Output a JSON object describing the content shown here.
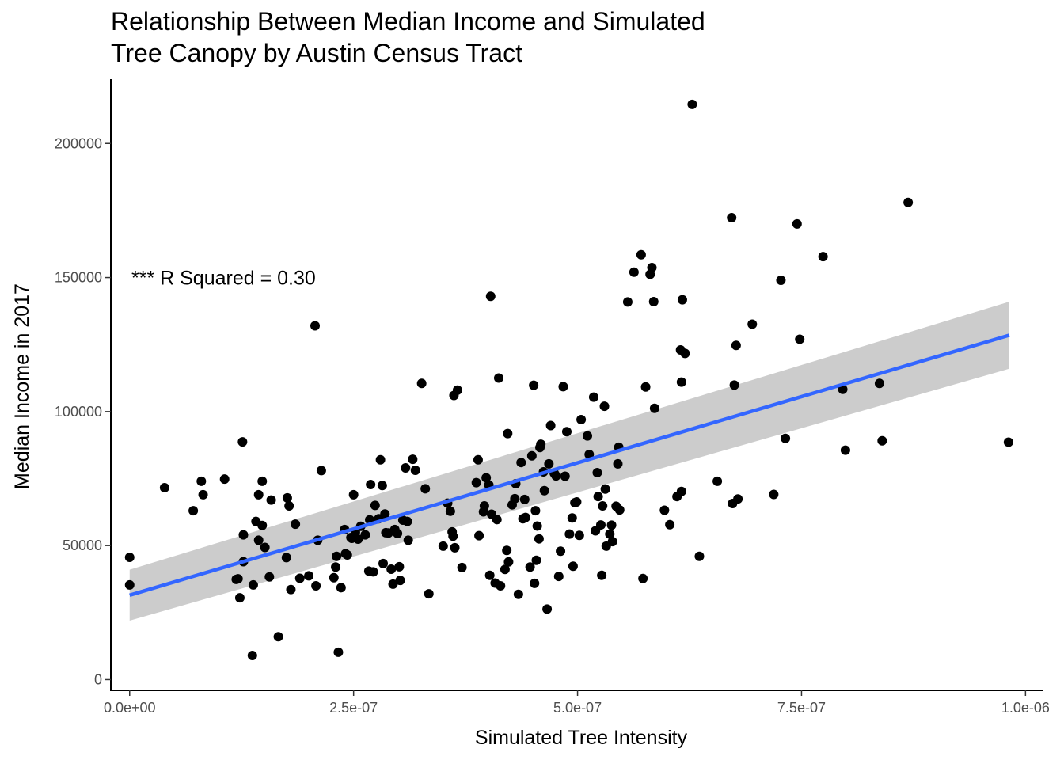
{
  "chart_data": {
    "type": "scatter",
    "title_lines": [
      "Relationship Between Median Income and Simulated",
      "Tree Canopy by Austin Census Tract"
    ],
    "xlabel": "Simulated Tree Intensity",
    "ylabel": "Median Income in 2017",
    "xlim": [
      -2.1e-08,
      1.02e-06
    ],
    "ylim": [
      -4000,
      224000
    ],
    "x_ticks": [
      {
        "value": 0,
        "label": "0.0e+00"
      },
      {
        "value": 2.5e-07,
        "label": "2.5e-07"
      },
      {
        "value": 5e-07,
        "label": "5.0e-07"
      },
      {
        "value": 7.5e-07,
        "label": "7.5e-07"
      },
      {
        "value": 1e-06,
        "label": "1.0e-06"
      }
    ],
    "y_ticks": [
      {
        "value": 0,
        "label": "0"
      },
      {
        "value": 50000,
        "label": "50000"
      },
      {
        "value": 100000,
        "label": "100000"
      },
      {
        "value": 150000,
        "label": "150000"
      },
      {
        "value": 200000,
        "label": "200000"
      }
    ],
    "annotation": {
      "text": "*** R Squared = 0.30",
      "x": -2.5e-08,
      "y": 150000
    },
    "grid": false,
    "legend": "none",
    "colors": {
      "points": "#000000",
      "fit_line": "#3366ff",
      "ribbon": "#cccccc",
      "axis": "#000000"
    },
    "fit_line": {
      "x": [
        0,
        9.82e-07
      ],
      "y": [
        31500,
        128500
      ],
      "ci_lower": [
        22000,
        116000
      ],
      "ci_upper": [
        41000,
        141000
      ]
    },
    "points": [
      [
        0.0,
        45600
      ],
      [
        0.0,
        35300
      ],
      [
        3.9e-08,
        71600
      ],
      [
        7.1e-08,
        63000
      ],
      [
        8e-08,
        74000
      ],
      [
        8.2e-08,
        69000
      ],
      [
        1.06e-07,
        74800
      ],
      [
        1.19e-07,
        37400
      ],
      [
        1.21e-07,
        37600
      ],
      [
        1.23e-07,
        30500
      ],
      [
        1.27e-07,
        54000
      ],
      [
        1.27e-07,
        44000
      ],
      [
        1.26e-07,
        88700
      ],
      [
        1.37e-07,
        9000
      ],
      [
        1.38e-07,
        35300
      ],
      [
        1.41e-07,
        59000
      ],
      [
        1.44e-07,
        52000
      ],
      [
        1.44e-07,
        69000
      ],
      [
        1.48e-07,
        57500
      ],
      [
        1.48e-07,
        74000
      ],
      [
        1.51e-07,
        49300
      ],
      [
        1.56e-07,
        38300
      ],
      [
        1.58e-07,
        67000
      ],
      [
        1.66e-07,
        16000
      ],
      [
        1.75e-07,
        45500
      ],
      [
        1.76e-07,
        67800
      ],
      [
        1.78e-07,
        64800
      ],
      [
        1.8e-07,
        33600
      ],
      [
        1.85e-07,
        58000
      ],
      [
        1.9e-07,
        37800
      ],
      [
        2e-07,
        38700
      ],
      [
        2.07e-07,
        132000
      ],
      [
        2.08e-07,
        35000
      ],
      [
        2.1e-07,
        52000
      ],
      [
        2.14e-07,
        78000
      ],
      [
        2.28e-07,
        38000
      ],
      [
        2.3e-07,
        42000
      ],
      [
        2.31e-07,
        46000
      ],
      [
        2.33e-07,
        10200
      ],
      [
        2.36e-07,
        34300
      ],
      [
        2.4e-07,
        56000
      ],
      [
        2.41e-07,
        47000
      ],
      [
        2.43e-07,
        46500
      ],
      [
        2.47e-07,
        53000
      ],
      [
        2.48e-07,
        52700
      ],
      [
        2.5e-07,
        69000
      ],
      [
        2.52e-07,
        55000
      ],
      [
        2.55e-07,
        52400
      ],
      [
        2.58e-07,
        57200
      ],
      [
        2.63e-07,
        54000
      ],
      [
        2.67e-07,
        40500
      ],
      [
        2.68e-07,
        59600
      ],
      [
        2.69e-07,
        72800
      ],
      [
        2.72e-07,
        40200
      ],
      [
        2.74e-07,
        65000
      ],
      [
        2.78e-07,
        60000
      ],
      [
        2.8e-07,
        82000
      ],
      [
        2.82e-07,
        72400
      ],
      [
        2.83e-07,
        43300
      ],
      [
        2.85e-07,
        61800
      ],
      [
        2.86e-07,
        54800
      ],
      [
        2.89e-07,
        54700
      ],
      [
        2.92e-07,
        41200
      ],
      [
        2.94e-07,
        35600
      ],
      [
        2.96e-07,
        56000
      ],
      [
        2.99e-07,
        54500
      ],
      [
        3.01e-07,
        42100
      ],
      [
        3.02e-07,
        37000
      ],
      [
        3.05e-07,
        59500
      ],
      [
        3.08e-07,
        79000
      ],
      [
        3.1e-07,
        59000
      ],
      [
        3.11e-07,
        52000
      ],
      [
        3.16e-07,
        82200
      ],
      [
        3.19e-07,
        78100
      ],
      [
        3.26e-07,
        110500
      ],
      [
        3.3e-07,
        71200
      ],
      [
        3.34e-07,
        32000
      ],
      [
        3.5e-07,
        49800
      ],
      [
        3.55e-07,
        65800
      ],
      [
        3.58e-07,
        62800
      ],
      [
        3.6e-07,
        55100
      ],
      [
        3.61e-07,
        53500
      ],
      [
        3.62e-07,
        106000
      ],
      [
        3.63e-07,
        49200
      ],
      [
        3.66e-07,
        108000
      ],
      [
        3.71e-07,
        41800
      ],
      [
        3.87e-07,
        73500
      ],
      [
        3.89e-07,
        82000
      ],
      [
        3.9e-07,
        53700
      ],
      [
        3.95e-07,
        62600
      ],
      [
        3.96e-07,
        64800
      ],
      [
        3.98e-07,
        75300
      ],
      [
        4.01e-07,
        72600
      ],
      [
        4.02e-07,
        38900
      ],
      [
        4.03e-07,
        143000
      ],
      [
        4.04e-07,
        61700
      ],
      [
        4.08e-07,
        36000
      ],
      [
        4.1e-07,
        59700
      ],
      [
        4.12e-07,
        112500
      ],
      [
        4.14e-07,
        35000
      ],
      [
        4.19e-07,
        41100
      ],
      [
        4.21e-07,
        48200
      ],
      [
        4.22e-07,
        91800
      ],
      [
        4.23e-07,
        43900
      ],
      [
        4.27e-07,
        65200
      ],
      [
        4.3e-07,
        67500
      ],
      [
        4.31e-07,
        73100
      ],
      [
        4.34e-07,
        31800
      ],
      [
        4.37e-07,
        81000
      ],
      [
        4.39e-07,
        60000
      ],
      [
        4.41e-07,
        67200
      ],
      [
        4.42e-07,
        60500
      ],
      [
        4.47e-07,
        42000
      ],
      [
        4.49e-07,
        83500
      ],
      [
        4.51e-07,
        109800
      ],
      [
        4.52e-07,
        35900
      ],
      [
        4.53e-07,
        63000
      ],
      [
        4.54e-07,
        44500
      ],
      [
        4.55e-07,
        57300
      ],
      [
        4.57e-07,
        52500
      ],
      [
        4.58e-07,
        86600
      ],
      [
        4.59e-07,
        87800
      ],
      [
        4.62e-07,
        77500
      ],
      [
        4.63e-07,
        70500
      ],
      [
        4.66e-07,
        26300
      ],
      [
        4.68e-07,
        80500
      ],
      [
        4.7e-07,
        94800
      ],
      [
        4.74e-07,
        77000
      ],
      [
        4.76e-07,
        76000
      ],
      [
        4.79e-07,
        38500
      ],
      [
        4.81e-07,
        47900
      ],
      [
        4.84e-07,
        109300
      ],
      [
        4.86e-07,
        75900
      ],
      [
        4.88e-07,
        92500
      ],
      [
        4.91e-07,
        54300
      ],
      [
        4.94e-07,
        60300
      ],
      [
        4.95e-07,
        42300
      ],
      [
        4.97e-07,
        66000
      ],
      [
        4.99e-07,
        66300
      ],
      [
        5.02e-07,
        53800
      ],
      [
        5.04e-07,
        97000
      ],
      [
        5.11e-07,
        90900
      ],
      [
        5.13e-07,
        84000
      ],
      [
        5.18e-07,
        105400
      ],
      [
        5.2e-07,
        55500
      ],
      [
        5.22e-07,
        77200
      ],
      [
        5.23e-07,
        68300
      ],
      [
        5.26e-07,
        57700
      ],
      [
        5.27e-07,
        38900
      ],
      [
        5.28e-07,
        64800
      ],
      [
        5.3e-07,
        102000
      ],
      [
        5.31e-07,
        71100
      ],
      [
        5.32e-07,
        49800
      ],
      [
        5.36e-07,
        54300
      ],
      [
        5.38e-07,
        57600
      ],
      [
        5.39e-07,
        51500
      ],
      [
        5.43e-07,
        64700
      ],
      [
        5.45e-07,
        80500
      ],
      [
        5.46e-07,
        86700
      ],
      [
        5.47e-07,
        63300
      ],
      [
        5.56e-07,
        140900
      ],
      [
        5.63e-07,
        152000
      ],
      [
        5.71e-07,
        158500
      ],
      [
        5.73e-07,
        37700
      ],
      [
        5.76e-07,
        109200
      ],
      [
        5.81e-07,
        151200
      ],
      [
        5.83e-07,
        153700
      ],
      [
        5.85e-07,
        141000
      ],
      [
        5.86e-07,
        101200
      ],
      [
        5.97e-07,
        63200
      ],
      [
        6.03e-07,
        57800
      ],
      [
        6.11e-07,
        68300
      ],
      [
        6.15e-07,
        123000
      ],
      [
        6.16e-07,
        111000
      ],
      [
        6.16e-07,
        70200
      ],
      [
        6.17e-07,
        141700
      ],
      [
        6.2e-07,
        121700
      ],
      [
        6.28e-07,
        214600
      ],
      [
        6.36e-07,
        46000
      ],
      [
        6.56e-07,
        74000
      ],
      [
        6.72e-07,
        172300
      ],
      [
        6.73e-07,
        65700
      ],
      [
        6.75e-07,
        109900
      ],
      [
        6.77e-07,
        124700
      ],
      [
        6.79e-07,
        67400
      ],
      [
        6.95e-07,
        132600
      ],
      [
        7.19e-07,
        69100
      ],
      [
        7.27e-07,
        149000
      ],
      [
        7.32e-07,
        90000
      ],
      [
        7.45e-07,
        170000
      ],
      [
        7.48e-07,
        127000
      ],
      [
        7.74e-07,
        157800
      ],
      [
        7.96e-07,
        108300
      ],
      [
        7.99e-07,
        85600
      ],
      [
        8.37e-07,
        110500
      ],
      [
        8.4e-07,
        89100
      ],
      [
        8.69e-07,
        178000
      ],
      [
        9.81e-07,
        88600
      ]
    ]
  }
}
